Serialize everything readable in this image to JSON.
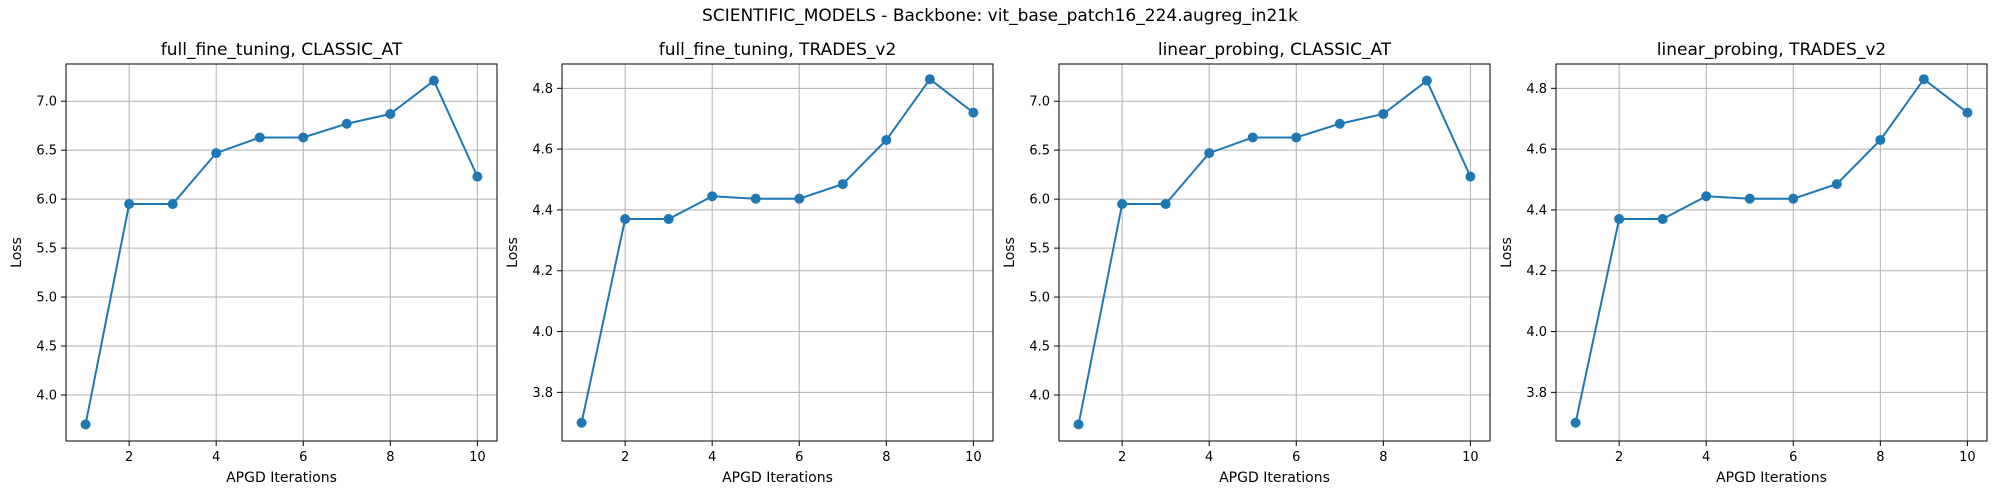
{
  "figure": {
    "suptitle": "SCIENTIFIC_MODELS - Backbone: vit_base_patch16_224.augreg_in21k",
    "series_color": "#1f77b4",
    "grid_color": "#b0b0b0"
  },
  "chart_data": [
    {
      "type": "line",
      "title": "full_fine_tuning, CLASSIC_AT",
      "xlabel": "APGD Iterations",
      "ylabel": "Loss",
      "x": [
        1,
        2,
        3,
        4,
        5,
        6,
        7,
        8,
        9,
        10
      ],
      "y": [
        3.7,
        5.95,
        5.95,
        6.47,
        6.63,
        6.63,
        6.77,
        6.87,
        7.21,
        6.23
      ],
      "xlim": [
        0.55,
        10.45
      ],
      "ylim": [
        3.53,
        7.38
      ],
      "xticks": [
        2,
        4,
        6,
        8,
        10
      ],
      "yticks": [
        4.0,
        4.5,
        5.0,
        5.5,
        6.0,
        6.5,
        7.0
      ],
      "ytick_labels": [
        "4.0",
        "4.5",
        "5.0",
        "5.5",
        "6.0",
        "6.5",
        "7.0"
      ],
      "grid": true,
      "marker": "circle"
    },
    {
      "type": "line",
      "title": "full_fine_tuning, TRADES_v2",
      "xlabel": "APGD Iterations",
      "ylabel": "Loss",
      "x": [
        1,
        2,
        3,
        4,
        5,
        6,
        7,
        8,
        9,
        10
      ],
      "y": [
        3.7,
        4.37,
        4.37,
        4.445,
        4.437,
        4.437,
        4.485,
        4.63,
        4.83,
        4.72
      ],
      "xlim": [
        0.55,
        10.45
      ],
      "ylim": [
        3.64,
        4.88
      ],
      "xticks": [
        2,
        4,
        6,
        8,
        10
      ],
      "yticks": [
        3.8,
        4.0,
        4.2,
        4.4,
        4.6,
        4.8
      ],
      "ytick_labels": [
        "3.8",
        "4.0",
        "4.2",
        "4.4",
        "4.6",
        "4.8"
      ],
      "grid": true,
      "marker": "circle"
    },
    {
      "type": "line",
      "title": "linear_probing, CLASSIC_AT",
      "xlabel": "APGD Iterations",
      "ylabel": "Loss",
      "x": [
        1,
        2,
        3,
        4,
        5,
        6,
        7,
        8,
        9,
        10
      ],
      "y": [
        3.7,
        5.95,
        5.95,
        6.47,
        6.63,
        6.63,
        6.77,
        6.87,
        7.21,
        6.23
      ],
      "xlim": [
        0.55,
        10.45
      ],
      "ylim": [
        3.53,
        7.38
      ],
      "xticks": [
        2,
        4,
        6,
        8,
        10
      ],
      "yticks": [
        4.0,
        4.5,
        5.0,
        5.5,
        6.0,
        6.5,
        7.0
      ],
      "ytick_labels": [
        "4.0",
        "4.5",
        "5.0",
        "5.5",
        "6.0",
        "6.5",
        "7.0"
      ],
      "grid": true,
      "marker": "circle"
    },
    {
      "type": "line",
      "title": "linear_probing, TRADES_v2",
      "xlabel": "APGD Iterations",
      "ylabel": "Loss",
      "x": [
        1,
        2,
        3,
        4,
        5,
        6,
        7,
        8,
        9,
        10
      ],
      "y": [
        3.7,
        4.37,
        4.37,
        4.445,
        4.437,
        4.437,
        4.485,
        4.63,
        4.83,
        4.72
      ],
      "xlim": [
        0.55,
        10.45
      ],
      "ylim": [
        3.64,
        4.88
      ],
      "xticks": [
        2,
        4,
        6,
        8,
        10
      ],
      "yticks": [
        3.8,
        4.0,
        4.2,
        4.4,
        4.6,
        4.8
      ],
      "ytick_labels": [
        "3.8",
        "4.0",
        "4.2",
        "4.4",
        "4.6",
        "4.8"
      ],
      "grid": true,
      "marker": "circle"
    }
  ]
}
